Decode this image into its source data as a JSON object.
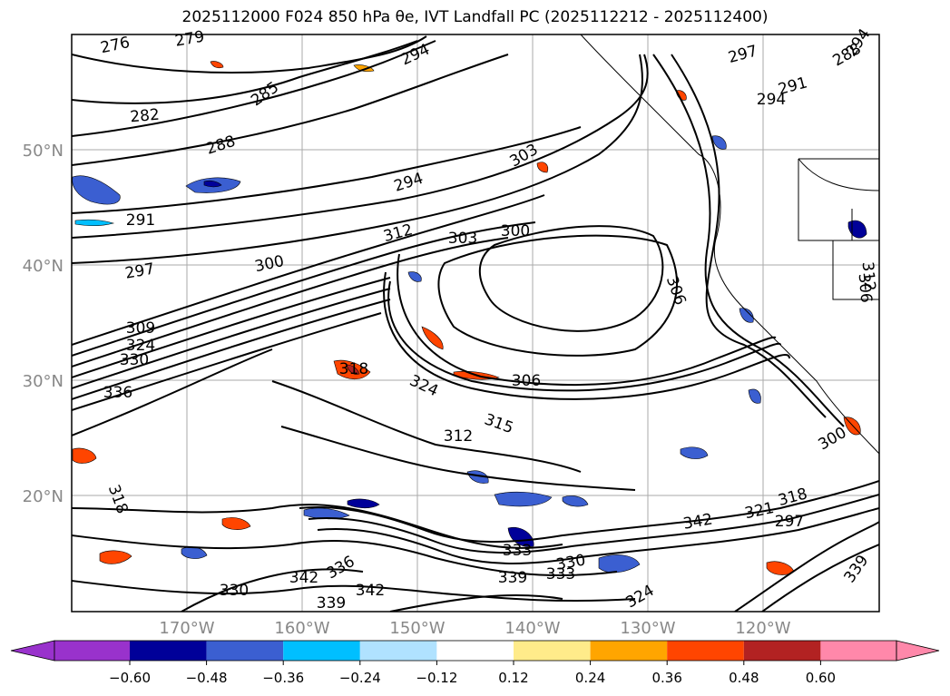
{
  "title": "2025112000 F024 850 hPa θe, IVT Landfall PC (2025112212 - 2025112400)",
  "lat_labels": [
    "50°N",
    "40°N",
    "30°N",
    "20°N"
  ],
  "lon_labels": [
    "170°W",
    "160°W",
    "150°W",
    "140°W",
    "130°W",
    "120°W"
  ],
  "contour_labels": [
    "276",
    "279",
    "294",
    "282",
    "285",
    "288",
    "294",
    "291",
    "297",
    "303",
    "312",
    "300",
    "303",
    "300",
    "309",
    "324",
    "330",
    "336",
    "306",
    "318",
    "324",
    "312",
    "315",
    "306",
    "318",
    "330",
    "342",
    "336",
    "339",
    "342",
    "339",
    "333",
    "330",
    "333",
    "324",
    "339",
    "342",
    "321",
    "318",
    "300",
    "312",
    "306",
    "294",
    "297",
    "291",
    "288",
    "294",
    "297"
  ],
  "colorbar": {
    "ticks": [
      "−0.60",
      "−0.48",
      "−0.36",
      "−0.24",
      "−0.12",
      "0.12",
      "0.24",
      "0.36",
      "0.48",
      "0.60"
    ],
    "colors": [
      "#9932cc",
      "#000099",
      "#3b5fd1",
      "#00bfff",
      "#b0e2ff",
      "#ffffff",
      "#ffeb8a",
      "#ffa500",
      "#ff4500",
      "#b22222",
      "#ff88aa"
    ]
  }
}
